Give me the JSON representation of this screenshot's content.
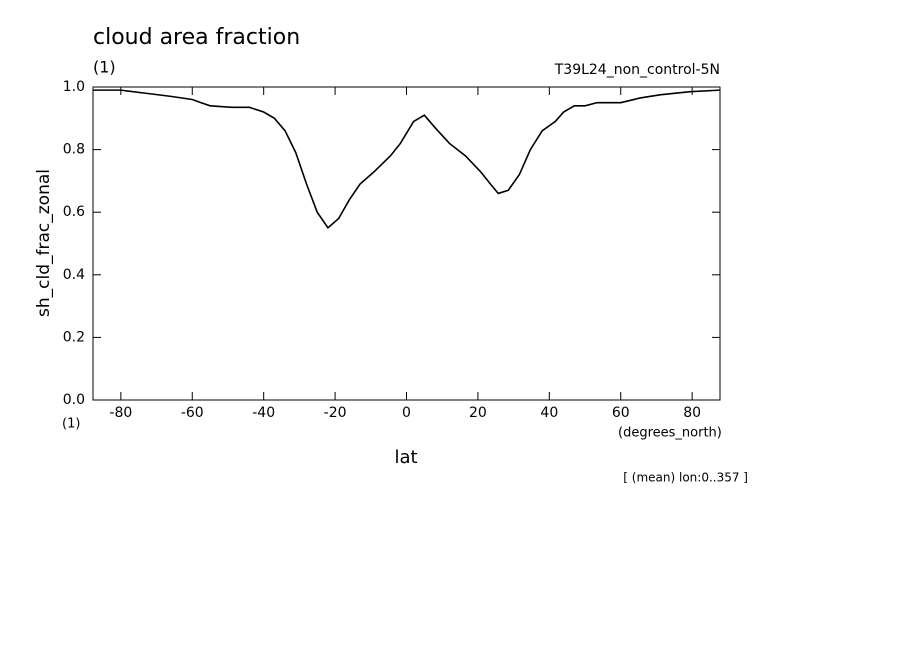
{
  "chart_data": {
    "type": "line",
    "title": "cloud area fraction",
    "units": "(1)",
    "dataset": "T39L24_non_control-5N",
    "ylabel": "sh_cld_frac_zonal",
    "y_units_bottom": "(1)",
    "x_units": "(degrees_north)",
    "xlabel": "lat",
    "footnote": "[ (mean) lon:0..357 ]",
    "color": "#000000",
    "x": [
      -87.8,
      -80,
      -73,
      -66,
      -60,
      -57.6,
      -55,
      -49,
      -44,
      -40,
      -37,
      -34,
      -31,
      -28,
      -25,
      -22,
      -19,
      -16,
      -13,
      -9,
      -4.5,
      -1.7,
      2,
      5,
      8,
      12,
      16.5,
      20.7,
      23.5,
      25.7,
      28.5,
      31.6,
      34.7,
      38,
      41.7,
      44,
      47,
      50,
      53.4,
      60,
      65.5,
      71,
      79.4,
      87.8
    ],
    "values": [
      0.99,
      0.99,
      0.98,
      0.97,
      0.96,
      0.95,
      0.94,
      0.935,
      0.935,
      0.92,
      0.9,
      0.86,
      0.79,
      0.69,
      0.6,
      0.55,
      0.58,
      0.64,
      0.69,
      0.73,
      0.78,
      0.82,
      0.89,
      0.91,
      0.87,
      0.82,
      0.78,
      0.73,
      0.69,
      0.66,
      0.67,
      0.72,
      0.8,
      0.86,
      0.89,
      0.92,
      0.94,
      0.94,
      0.95,
      0.95,
      0.965,
      0.975,
      0.985,
      0.99
    ],
    "xlim": [
      -87.8,
      87.8
    ],
    "ylim": [
      0,
      1
    ],
    "xticks": [
      -80,
      -60,
      -40,
      -20,
      0,
      20,
      40,
      60,
      80
    ],
    "yticks": [
      {
        "value": 0,
        "label": "0.0"
      },
      0.2,
      0.4,
      0.6,
      0.8,
      {
        "value": 1,
        "label": "1.0"
      }
    ]
  }
}
